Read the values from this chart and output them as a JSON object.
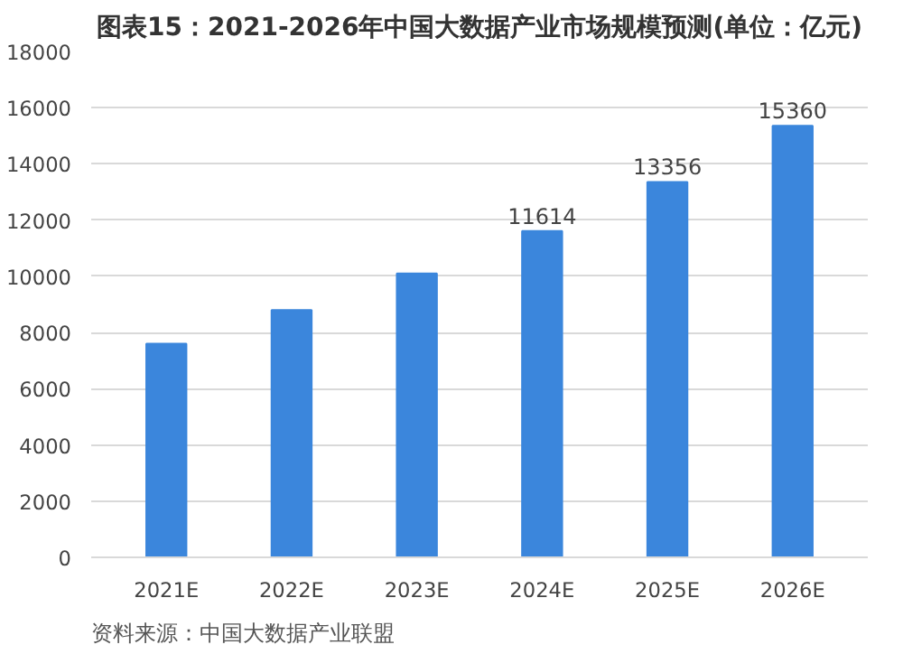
{
  "chart_data": {
    "type": "bar",
    "title": "图表15：2021-2026年中国大数据产业市场规模预测(单位：亿元)",
    "categories": [
      "2021E",
      "2022E",
      "2023E",
      "2024E",
      "2025E",
      "2026E"
    ],
    "values": [
      7600,
      8800,
      10100,
      11614,
      13356,
      15360
    ],
    "value_labels": [
      null,
      null,
      null,
      "11614",
      "13356",
      "15360"
    ],
    "color": "#3b86dc",
    "ylim": [
      0,
      18000
    ],
    "yticks": [
      0,
      2000,
      4000,
      6000,
      8000,
      10000,
      12000,
      14000,
      16000,
      18000
    ],
    "grid": "y",
    "annotations": [
      "资料来源：中国大数据产业联盟"
    ]
  }
}
